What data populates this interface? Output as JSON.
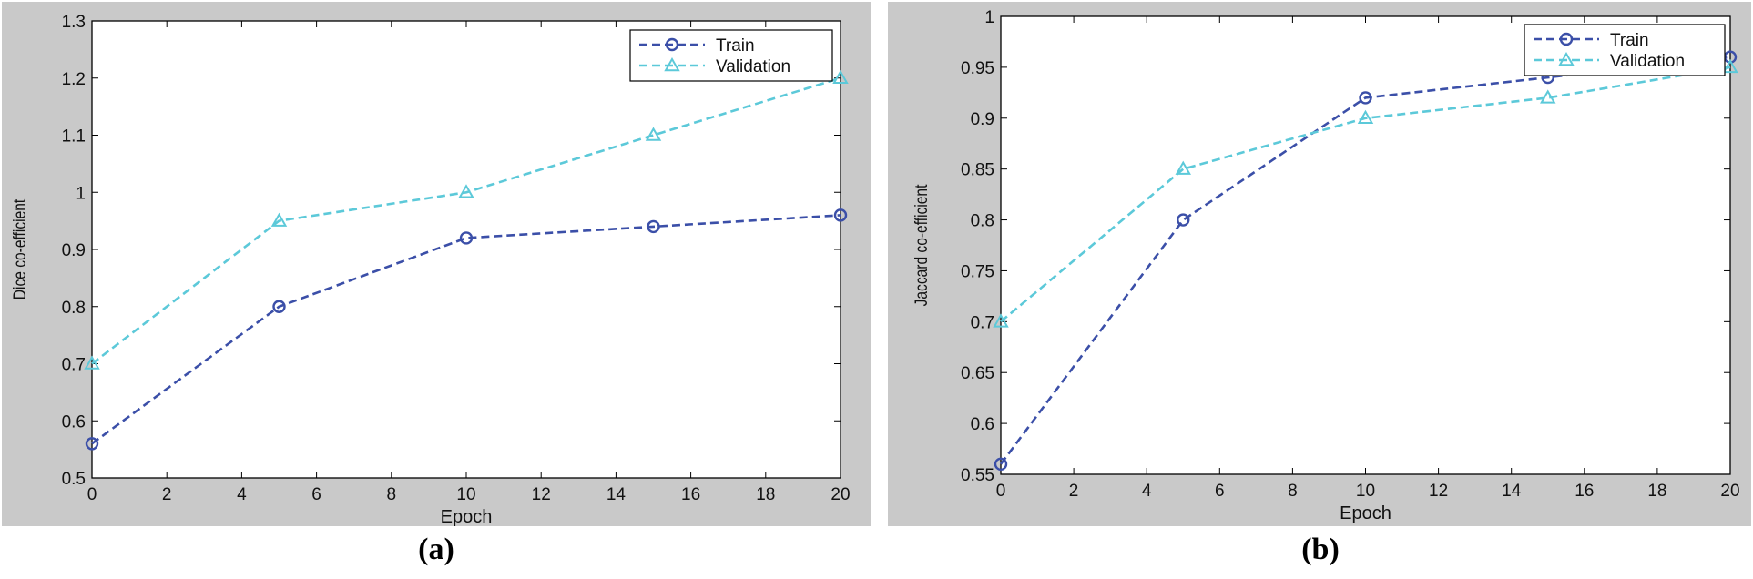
{
  "chart_data": [
    {
      "type": "line",
      "panel_label": "(a)",
      "xlabel": "Epoch",
      "ylabel": "Dice co-efficient",
      "xlim": [
        0,
        20
      ],
      "ylim": [
        0.5,
        1.3
      ],
      "xticks": [
        "0",
        "2",
        "4",
        "6",
        "8",
        "10",
        "12",
        "14",
        "16",
        "18",
        "20"
      ],
      "yticks": [
        "0.5",
        "0.6",
        "0.7",
        "0.8",
        "0.9",
        "1",
        "1.1",
        "1.2",
        "1.3"
      ],
      "legend_position": "top-right",
      "grid": false,
      "series": [
        {
          "name": "Train",
          "marker": "circle",
          "color": "#3b4fa8",
          "x": [
            0,
            5,
            10,
            15,
            20
          ],
          "y": [
            0.56,
            0.8,
            0.92,
            0.94,
            0.96
          ]
        },
        {
          "name": "Validation",
          "marker": "triangle",
          "color": "#5cc9d9",
          "x": [
            0,
            5,
            10,
            15,
            20
          ],
          "y": [
            0.7,
            0.95,
            1.0,
            1.1,
            1.2
          ]
        }
      ]
    },
    {
      "type": "line",
      "panel_label": "(b)",
      "xlabel": "Epoch",
      "ylabel": "Jaccard co-efficient",
      "xlim": [
        0,
        20
      ],
      "ylim": [
        0.55,
        1.0
      ],
      "xticks": [
        "0",
        "2",
        "4",
        "6",
        "8",
        "10",
        "12",
        "14",
        "16",
        "18",
        "20"
      ],
      "yticks": [
        "0.55",
        "0.6",
        "0.65",
        "0.7",
        "0.75",
        "0.8",
        "0.85",
        "0.9",
        "0.95",
        "1"
      ],
      "legend_position": "top-right",
      "grid": false,
      "series": [
        {
          "name": "Train",
          "marker": "circle",
          "color": "#3b4fa8",
          "x": [
            0,
            5,
            10,
            15,
            20
          ],
          "y": [
            0.56,
            0.8,
            0.92,
            0.94,
            0.96
          ]
        },
        {
          "name": "Validation",
          "marker": "triangle",
          "color": "#5cc9d9",
          "x": [
            0,
            5,
            10,
            15,
            20
          ],
          "y": [
            0.7,
            0.85,
            0.9,
            0.92,
            0.95
          ]
        }
      ]
    }
  ]
}
